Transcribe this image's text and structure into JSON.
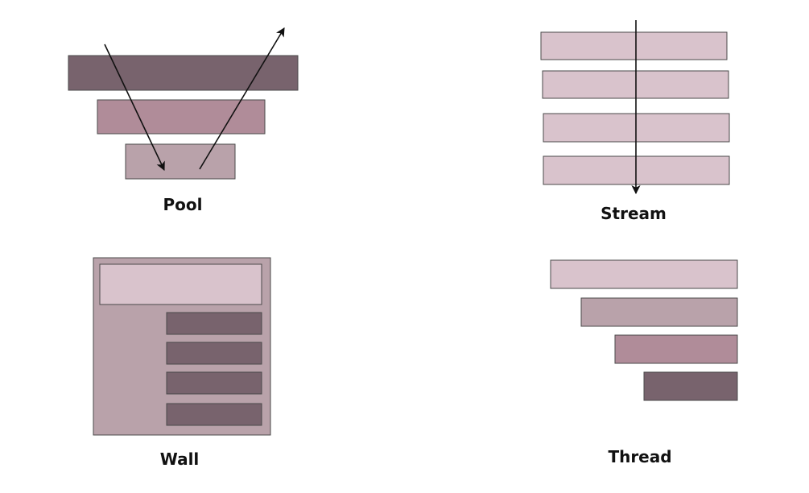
{
  "colors": {
    "dark": "#78636d",
    "mid": "#b08c99",
    "light": "#b9a2aa",
    "pale": "#d9c3cc",
    "stroke": "#4a4a4a",
    "arrow": "#111111",
    "label": "#111111"
  },
  "patterns": [
    {
      "id": "pool",
      "label": "Pool"
    },
    {
      "id": "stream",
      "label": "Stream"
    },
    {
      "id": "wall",
      "label": "Wall"
    },
    {
      "id": "thread",
      "label": "Thread"
    }
  ]
}
